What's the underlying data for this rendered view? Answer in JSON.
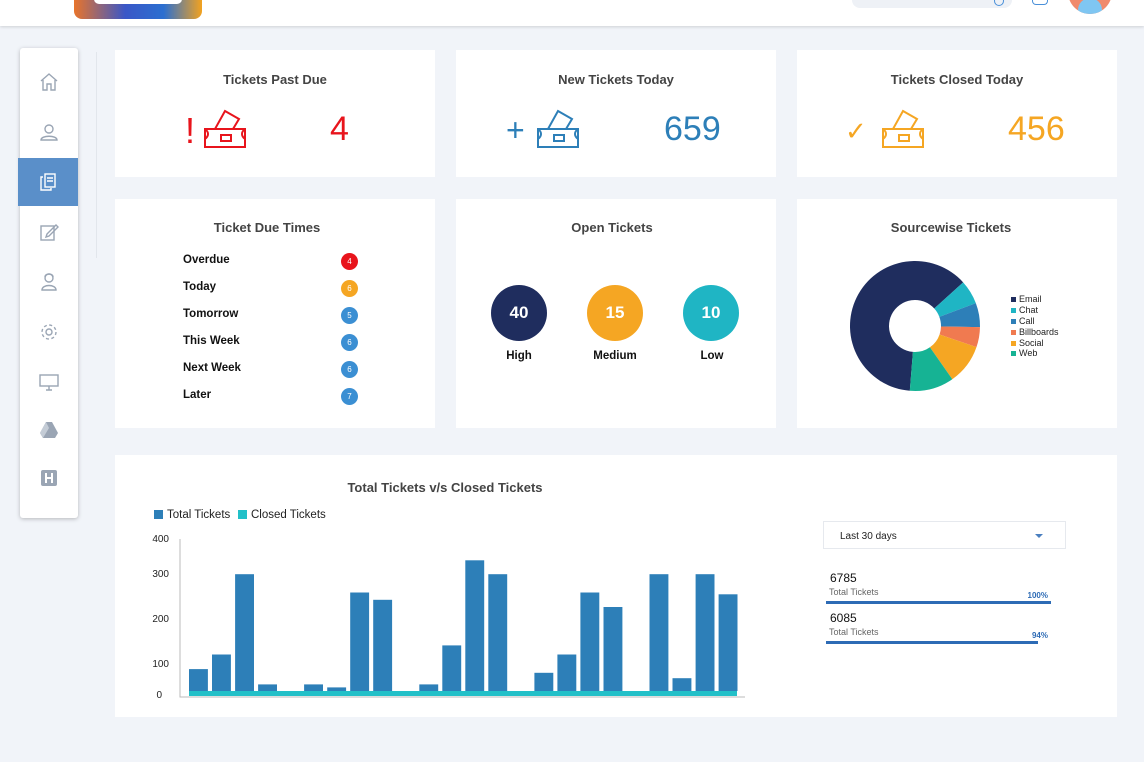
{
  "colors": {
    "accent_blue": "#2d7fb8",
    "red": "#e8141c",
    "orange": "#f5a623",
    "teal": "#1fb5c4",
    "navy": "#1f2d5e",
    "closed": "#22c0c8"
  },
  "sidebar": {
    "items": [
      {
        "icon": "home-icon"
      },
      {
        "icon": "user-icon"
      },
      {
        "icon": "tickets-icon",
        "active": true
      },
      {
        "icon": "edit-icon"
      },
      {
        "icon": "agents-icon"
      },
      {
        "icon": "gear-icon"
      },
      {
        "icon": "monitor-icon"
      },
      {
        "icon": "drive-icon"
      },
      {
        "icon": "h-icon"
      }
    ]
  },
  "cards": {
    "past_due": {
      "title": "Tickets Past Due",
      "value": "4",
      "prefix": "!"
    },
    "new_today": {
      "title": "New Tickets Today",
      "value": "659",
      "prefix": "+"
    },
    "closed_today": {
      "title": "Tickets Closed Today",
      "value": "456",
      "prefix": "✓"
    }
  },
  "due_times": {
    "title": "Ticket  Due Times",
    "rows": [
      {
        "label": "Overdue",
        "count": "4",
        "color": "#e8141c"
      },
      {
        "label": "Today",
        "count": "6",
        "color": "#f5a623"
      },
      {
        "label": "Tomorrow",
        "count": "5",
        "color": "#3b8fd3"
      },
      {
        "label": "This Week",
        "count": "6",
        "color": "#3b8fd3"
      },
      {
        "label": "Next Week",
        "count": "6",
        "color": "#3b8fd3"
      },
      {
        "label": "Later",
        "count": "7",
        "color": "#3b8fd3"
      }
    ]
  },
  "open_tickets": {
    "title": "Open Tickets",
    "items": [
      {
        "value": "40",
        "label": "High",
        "color": "#1f2d5e"
      },
      {
        "value": "15",
        "label": "Medium",
        "color": "#f5a623"
      },
      {
        "value": "10",
        "label": "Low",
        "color": "#1fb5c4"
      }
    ]
  },
  "sourcewise": {
    "title": "Sourcewise Tickets",
    "slices": [
      {
        "label": "Email",
        "value": 62,
        "color": "#1f2d5e"
      },
      {
        "label": "Chat",
        "value": 6,
        "color": "#1fb5c4"
      },
      {
        "label": "Call",
        "value": 6,
        "color": "#2d7fb8"
      },
      {
        "label": "Billboards",
        "value": 5,
        "color": "#f07a50"
      },
      {
        "label": "Social",
        "value": 10,
        "color": "#f5a623"
      },
      {
        "label": "Web",
        "value": 11,
        "color": "#16b394"
      }
    ]
  },
  "chart_data": {
    "type": "bar",
    "title": "Total Tickets v/s Closed Tickets",
    "ylim": [
      0,
      400
    ],
    "yticks": [
      "400",
      "300",
      "200",
      "100",
      "0"
    ],
    "legend": "top-left",
    "series": [
      {
        "name": "Total Tickets",
        "color": "#2d7fb8",
        "values": [
          60,
          100,
          320,
          18,
          0,
          18,
          10,
          270,
          250,
          0,
          18,
          125,
          358,
          320,
          0,
          50,
          100,
          270,
          230,
          0,
          320,
          35,
          320,
          265
        ]
      },
      {
        "name": "Closed Tickets",
        "color": "#22c0c8",
        "values": [
          0,
          0,
          0,
          0,
          0,
          0,
          0,
          0,
          0,
          0,
          0,
          0,
          0,
          0,
          0,
          0,
          0,
          0,
          0,
          0,
          0,
          0,
          0,
          0
        ]
      }
    ]
  },
  "summary": {
    "range": "Last 30 days",
    "stats": [
      {
        "value": "6785",
        "label": "Total Tickets",
        "pct": "100%",
        "fraction": 1.0
      },
      {
        "value": "6085",
        "label": "Total Tickets",
        "pct": "94%",
        "fraction": 0.94
      }
    ]
  }
}
